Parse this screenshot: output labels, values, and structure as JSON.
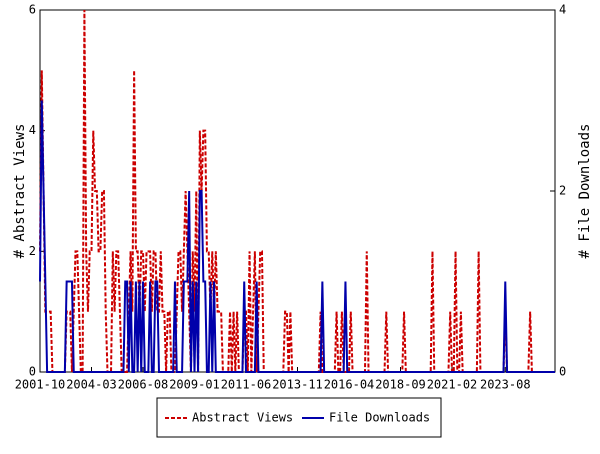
{
  "chart_data": {
    "type": "line",
    "categories": [
      "2001-10",
      null,
      null,
      null,
      null,
      null,
      null,
      null,
      null,
      null,
      null,
      null,
      null,
      null,
      null,
      null,
      null,
      null,
      null,
      null,
      null,
      null,
      null,
      null,
      null,
      null,
      null,
      null,
      null,
      "2004-03",
      null,
      null,
      null,
      null,
      null,
      null,
      null,
      null,
      null,
      null,
      null,
      null,
      null,
      null,
      null,
      null,
      null,
      null,
      null,
      null,
      null,
      null,
      null,
      null,
      null,
      null,
      null,
      null,
      "2006-08",
      null,
      null,
      null,
      null,
      null,
      null,
      null,
      null,
      null,
      null,
      null,
      null,
      null,
      null,
      null,
      null,
      null,
      null,
      null,
      null,
      null,
      null,
      null,
      null,
      null,
      null,
      null,
      null,
      "2009-01",
      null,
      null,
      null,
      null,
      null,
      null,
      null,
      null,
      null,
      null,
      null,
      null,
      null,
      null,
      null,
      null,
      null,
      null,
      null,
      null,
      null,
      null,
      null,
      null,
      null,
      null,
      null,
      null,
      "2011-06",
      null,
      null,
      null,
      null,
      null,
      null,
      null,
      null,
      null,
      null,
      null,
      null,
      null,
      null,
      null,
      null,
      null,
      null,
      null,
      null,
      null,
      null,
      null,
      null,
      null,
      null,
      null,
      null,
      "2013-11",
      null,
      null,
      null,
      null,
      null,
      null,
      null,
      null,
      null,
      null,
      null,
      null,
      null,
      null,
      null,
      null,
      null,
      null,
      null,
      null,
      null,
      null,
      null,
      null,
      null,
      null,
      null,
      null,
      "2016-04",
      null,
      null,
      null,
      null,
      null,
      null,
      null,
      null,
      null,
      null,
      null,
      null,
      null,
      null,
      null,
      null,
      null,
      null,
      null,
      null,
      null,
      null,
      null,
      null,
      null,
      null,
      null,
      null,
      "2018-09",
      null,
      null,
      null,
      null,
      null,
      null,
      null,
      null,
      null,
      null,
      null,
      null,
      null,
      null,
      null,
      null,
      null,
      null,
      null,
      null,
      null,
      null,
      null,
      null,
      null,
      null,
      null,
      null,
      "2021-02",
      null,
      null,
      null,
      null,
      null,
      null,
      null,
      null,
      null,
      null,
      null,
      null,
      null,
      null,
      null,
      null,
      null,
      null,
      null,
      null,
      null,
      null,
      null,
      null,
      null,
      null,
      null,
      null,
      null,
      "2023-08",
      null,
      null,
      null,
      null,
      null,
      null,
      null,
      null,
      null,
      null,
      null,
      null,
      null,
      null,
      null,
      null,
      null,
      null,
      null,
      null,
      null,
      null,
      null,
      null,
      null,
      null,
      null,
      null
    ],
    "series": [
      {
        "name": "Abstract Views",
        "color": "#cc0000",
        "dash": true,
        "values": [
          2,
          5,
          3,
          1,
          1,
          1,
          1,
          0,
          0,
          0,
          0,
          0,
          0,
          0,
          0,
          1,
          1,
          1,
          0,
          1,
          2,
          2,
          1,
          0,
          0,
          6,
          2,
          1,
          2,
          2,
          4,
          3,
          3,
          2,
          2,
          3,
          3,
          1,
          0,
          0,
          0,
          2,
          1,
          2,
          2,
          1,
          0,
          0,
          0,
          0,
          1,
          2,
          1,
          5,
          2,
          2,
          1,
          2,
          2,
          1,
          2,
          2,
          2,
          1,
          2,
          2,
          1,
          1,
          2,
          1,
          1,
          0,
          1,
          1,
          0,
          0,
          0,
          1,
          2,
          2,
          1,
          2,
          3,
          2,
          1,
          0,
          2,
          1,
          3,
          0,
          4,
          3,
          4,
          4,
          2,
          2,
          1,
          2,
          1,
          2,
          1,
          1,
          1,
          0,
          0,
          0,
          0,
          1,
          0,
          1,
          0,
          1,
          0,
          0,
          0,
          1,
          1,
          0,
          2,
          0,
          1,
          2,
          0,
          1,
          2,
          2,
          0,
          0,
          0,
          0,
          0,
          0,
          0,
          0,
          0,
          0,
          0,
          0,
          1,
          1,
          0,
          1,
          0,
          0,
          0,
          0,
          0,
          0,
          0,
          0,
          0,
          0,
          0,
          0,
          0,
          0,
          0,
          0,
          1,
          0,
          0,
          0,
          0,
          0,
          0,
          0,
          0,
          1,
          0,
          0,
          1,
          0,
          0,
          0,
          0,
          1,
          0,
          0,
          0,
          0,
          0,
          0,
          0,
          0,
          2,
          0,
          0,
          0,
          0,
          0,
          0,
          0,
          0,
          0,
          0,
          1,
          0,
          0,
          0,
          0,
          0,
          0,
          0,
          0,
          0,
          1,
          0,
          0,
          0,
          0,
          0,
          0,
          0,
          0,
          0,
          0,
          0,
          0,
          0,
          0,
          0,
          2,
          0,
          0,
          0,
          0,
          0,
          0,
          0,
          0,
          0,
          1,
          0,
          0,
          2,
          0,
          0,
          1,
          0,
          0,
          0,
          0,
          0,
          0,
          0,
          0,
          0,
          2,
          0,
          0,
          0,
          0,
          0,
          0,
          0,
          0,
          0,
          0,
          0,
          0,
          0,
          0,
          1,
          0,
          0,
          0,
          0,
          0,
          0,
          0,
          0,
          0,
          0,
          0,
          0,
          0,
          1,
          0,
          0,
          0,
          0,
          0,
          0,
          0,
          0,
          0,
          0,
          0,
          0,
          0,
          0
        ]
      },
      {
        "name": "File Downloads",
        "color": "#0000aa",
        "dash": false,
        "axis": "y2",
        "values": [
          1,
          3,
          2,
          1,
          0,
          0,
          0,
          0,
          0,
          0,
          0,
          0,
          0,
          0,
          0,
          1,
          1,
          1,
          1,
          0,
          0,
          0,
          0,
          0,
          0,
          0,
          0,
          0,
          0,
          0,
          0,
          0,
          0,
          0,
          0,
          0,
          0,
          0,
          0,
          0,
          0,
          0,
          0,
          0,
          0,
          0,
          0,
          0,
          1,
          1,
          0,
          1,
          0,
          0,
          1,
          0,
          1,
          0,
          1,
          0,
          0,
          0,
          1,
          0,
          0,
          1,
          1,
          0,
          0,
          0,
          0,
          0,
          0,
          0,
          0,
          0,
          1,
          0,
          0,
          0,
          0,
          1,
          1,
          1,
          2,
          0,
          1,
          0,
          1,
          0,
          2,
          2,
          1,
          1,
          0,
          0,
          1,
          0,
          1,
          0,
          0,
          0,
          0,
          0,
          0,
          0,
          0,
          0,
          0,
          0,
          0,
          0,
          0,
          0,
          0,
          1,
          0,
          0,
          0,
          0,
          0,
          0,
          1,
          0,
          0,
          0,
          0,
          0,
          0,
          0,
          0,
          0,
          0,
          0,
          0,
          0,
          0,
          0,
          0,
          0,
          0,
          0,
          0,
          0,
          0,
          0,
          0,
          0,
          0,
          0,
          0,
          0,
          0,
          0,
          0,
          0,
          0,
          0,
          0,
          1,
          0,
          0,
          0,
          0,
          0,
          0,
          0,
          0,
          0,
          0,
          0,
          0,
          1,
          0,
          0,
          0,
          0,
          0,
          0,
          0,
          0,
          0,
          0,
          0,
          0,
          0,
          0,
          0,
          0,
          0,
          0,
          0,
          0,
          0,
          0,
          0,
          0,
          0,
          0,
          0,
          0,
          0,
          0,
          0,
          0,
          0,
          0,
          0,
          0,
          0,
          0,
          0,
          0,
          0,
          0,
          0,
          0,
          0,
          0,
          0,
          0,
          0,
          0,
          0,
          0,
          0,
          0,
          0,
          0,
          0,
          0,
          0,
          0,
          0,
          0,
          0,
          0,
          0,
          0,
          0,
          0,
          0,
          0,
          0,
          0,
          0,
          0,
          0,
          0,
          0,
          0,
          0,
          0,
          0,
          0,
          0,
          0,
          0,
          0,
          0,
          0,
          0,
          1,
          0,
          0,
          0,
          0,
          0,
          0,
          0,
          0,
          0,
          0,
          0,
          0,
          0,
          0,
          0,
          0,
          0,
          0,
          0,
          0,
          0,
          0,
          0,
          0,
          0,
          0,
          0,
          0
        ]
      }
    ],
    "y_label": "# Abstract Views",
    "y2_label": "# File Downloads",
    "ylim": [
      0,
      6
    ],
    "yticks": [
      0,
      2,
      4,
      6
    ],
    "y2lim": [
      0,
      4
    ],
    "y2ticks": [
      0,
      2,
      4
    ],
    "legend": "bottom"
  }
}
